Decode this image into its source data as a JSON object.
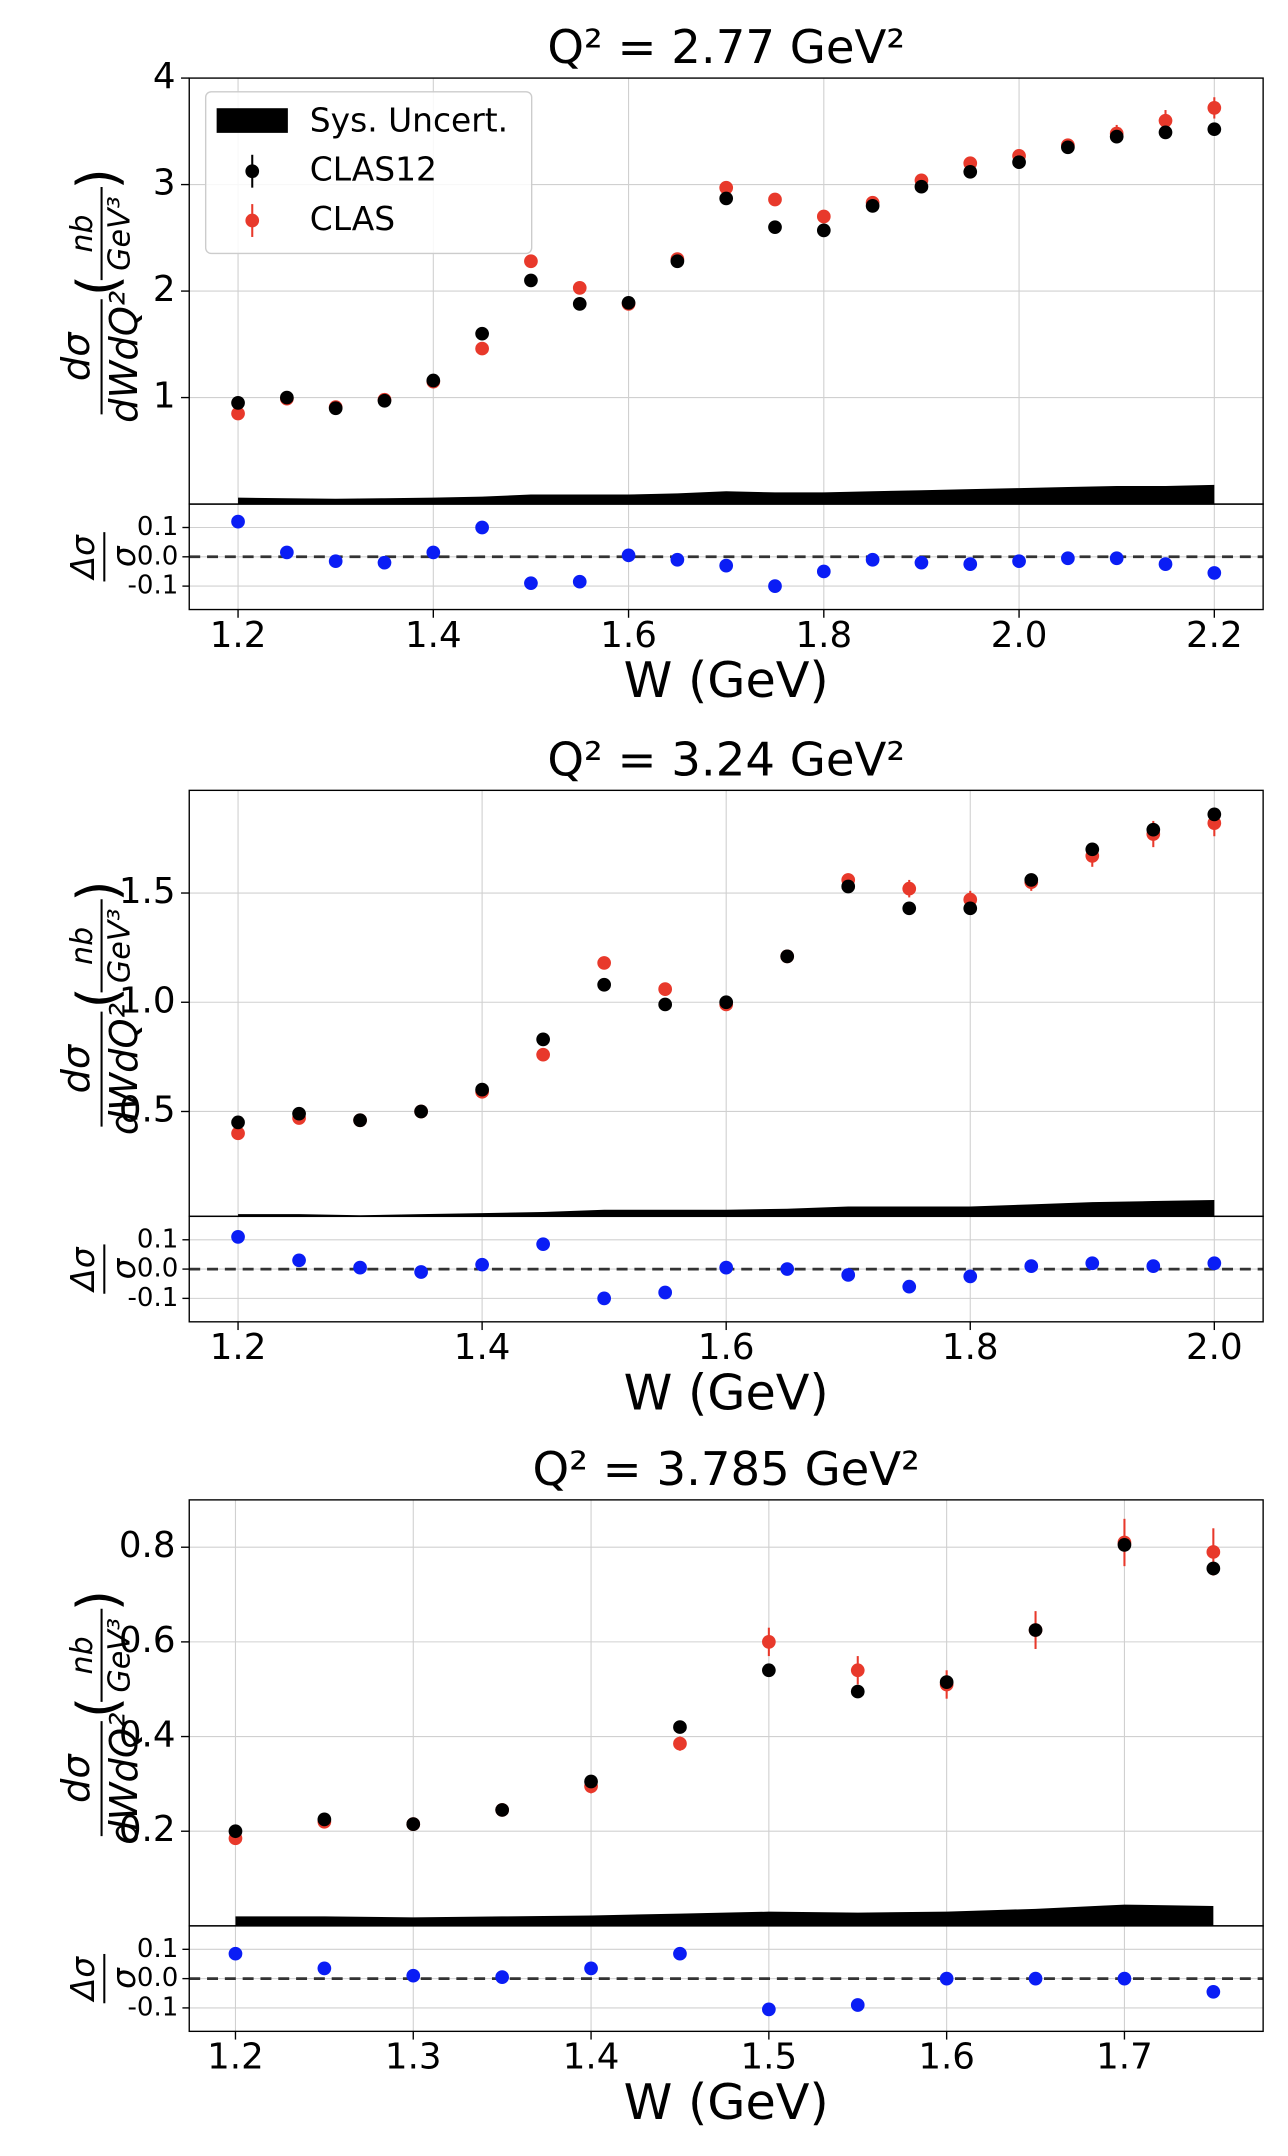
{
  "chart_data": [
    {
      "type": "errorbar",
      "title": "Q² = 2.77 GeV²",
      "xlabel": "W (GeV)",
      "ylabel": {
        "numerator": "dσ",
        "denominator": "dWdQ²",
        "unit_numerator": "nb",
        "unit_denominator": "GeV³"
      },
      "legend": "upper left",
      "grid": true,
      "x": [
        1.2,
        1.25,
        1.3,
        1.35,
        1.4,
        1.45,
        1.5,
        1.55,
        1.6,
        1.65,
        1.7,
        1.75,
        1.8,
        1.85,
        1.9,
        1.95,
        2.0,
        2.05,
        2.1,
        2.15,
        2.2
      ],
      "series": [
        {
          "name": "CLAS12",
          "color": "#000000",
          "values": [
            0.95,
            1.0,
            0.9,
            0.97,
            1.16,
            1.6,
            2.1,
            1.88,
            1.89,
            2.28,
            2.87,
            2.6,
            2.57,
            2.8,
            2.98,
            3.12,
            3.21,
            3.35,
            3.45,
            3.49,
            3.52
          ],
          "errors": [
            0.02,
            0.02,
            0.02,
            0.02,
            0.02,
            0.03,
            0.03,
            0.03,
            0.03,
            0.03,
            0.03,
            0.03,
            0.03,
            0.03,
            0.03,
            0.03,
            0.03,
            0.03,
            0.04,
            0.04,
            0.04
          ]
        },
        {
          "name": "CLAS",
          "color": "#e8392b",
          "values": [
            0.85,
            0.99,
            0.91,
            0.98,
            1.15,
            1.46,
            2.28,
            2.03,
            1.88,
            2.3,
            2.97,
            2.86,
            2.7,
            2.83,
            3.04,
            3.2,
            3.27,
            3.37,
            3.48,
            3.6,
            3.72
          ],
          "errors": [
            0.04,
            0.03,
            0.03,
            0.03,
            0.03,
            0.04,
            0.05,
            0.05,
            0.05,
            0.05,
            0.05,
            0.05,
            0.05,
            0.05,
            0.06,
            0.06,
            0.06,
            0.06,
            0.08,
            0.1,
            0.1
          ]
        }
      ],
      "band": {
        "name": "Sys. Uncert.",
        "color": "#000000",
        "values": [
          0.06,
          0.055,
          0.05,
          0.055,
          0.06,
          0.07,
          0.09,
          0.09,
          0.09,
          0.1,
          0.12,
          0.11,
          0.11,
          0.12,
          0.13,
          0.14,
          0.15,
          0.16,
          0.17,
          0.17,
          0.18
        ]
      },
      "xlim": [
        1.15,
        2.25
      ],
      "xticks": [
        1.2,
        1.4,
        1.6,
        1.8,
        {
          "value": 2.0,
          "label": "2.0"
        },
        2.2
      ],
      "ylim": [
        0,
        4.0
      ],
      "yticks": [
        1,
        2,
        3,
        4
      ],
      "ratio": {
        "ylabel": {
          "numerator": "Δσ",
          "denominator": "σ"
        },
        "color": "#0a1df5",
        "reference": 0,
        "values": [
          0.12,
          0.015,
          -0.015,
          -0.02,
          0.015,
          0.1,
          -0.09,
          -0.085,
          0.005,
          -0.01,
          -0.03,
          -0.1,
          -0.05,
          -0.01,
          -0.02,
          -0.025,
          -0.015,
          -0.005,
          -0.005,
          -0.025,
          -0.055
        ],
        "ylim": [
          -0.18,
          0.18
        ],
        "yticks": [
          0.1,
          {
            "value": 0,
            "label": "0.0"
          },
          -0.1
        ]
      }
    },
    {
      "type": "errorbar",
      "title": "Q² = 3.24 GeV²",
      "xlabel": "W (GeV)",
      "ylabel": {
        "numerator": "dσ",
        "denominator": "dWdQ²",
        "unit_numerator": "nb",
        "unit_denominator": "GeV³"
      },
      "grid": true,
      "x": [
        1.2,
        1.25,
        1.3,
        1.35,
        1.4,
        1.45,
        1.5,
        1.55,
        1.6,
        1.65,
        1.7,
        1.75,
        1.8,
        1.85,
        1.9,
        1.95,
        2.0
      ],
      "series": [
        {
          "name": "CLAS12",
          "color": "#000000",
          "values": [
            0.45,
            0.49,
            0.46,
            0.5,
            0.6,
            0.83,
            1.08,
            0.99,
            1.0,
            1.21,
            1.53,
            1.43,
            1.43,
            1.56,
            1.7,
            1.79,
            1.86
          ],
          "errors": [
            0.01,
            0.01,
            0.01,
            0.01,
            0.01,
            0.01,
            0.01,
            0.01,
            0.01,
            0.01,
            0.02,
            0.02,
            0.02,
            0.02,
            0.02,
            0.02,
            0.02
          ]
        },
        {
          "name": "CLAS",
          "color": "#e8392b",
          "values": [
            0.4,
            0.47,
            0.46,
            0.5,
            0.59,
            0.76,
            1.18,
            1.06,
            0.99,
            1.21,
            1.56,
            1.52,
            1.47,
            1.55,
            1.67,
            1.77,
            1.82
          ],
          "errors": [
            0.02,
            0.02,
            0.02,
            0.02,
            0.02,
            0.02,
            0.03,
            0.03,
            0.03,
            0.03,
            0.03,
            0.04,
            0.04,
            0.04,
            0.05,
            0.06,
            0.06
          ]
        }
      ],
      "band": {
        "name": "Sys. Uncert.",
        "color": "#000000",
        "values": [
          0.03,
          0.03,
          0.025,
          0.03,
          0.035,
          0.04,
          0.05,
          0.05,
          0.05,
          0.055,
          0.065,
          0.065,
          0.065,
          0.075,
          0.085,
          0.09,
          0.095
        ]
      },
      "xlim": [
        1.16,
        2.04
      ],
      "xticks": [
        1.2,
        1.4,
        1.6,
        1.8,
        {
          "value": 2.0,
          "label": "2.0"
        }
      ],
      "ylim": [
        0.02,
        1.97
      ],
      "yticks": [
        0.5,
        {
          "value": 1.0,
          "label": "1.0"
        },
        1.5
      ],
      "ratio": {
        "ylabel": {
          "numerator": "Δσ",
          "denominator": "σ"
        },
        "color": "#0a1df5",
        "reference": 0,
        "values": [
          0.11,
          0.03,
          0.005,
          -0.01,
          0.015,
          0.085,
          -0.1,
          -0.08,
          0.005,
          0,
          -0.02,
          -0.06,
          -0.025,
          0.01,
          0.02,
          0.01,
          0.02
        ],
        "ylim": [
          -0.18,
          0.18
        ],
        "yticks": [
          0.1,
          {
            "value": 0,
            "label": "0.0"
          },
          -0.1
        ]
      }
    },
    {
      "type": "errorbar",
      "title": "Q² = 3.785 GeV²",
      "xlabel": "W (GeV)",
      "ylabel": {
        "numerator": "dσ",
        "denominator": "dWdQ²",
        "unit_numerator": "nb",
        "unit_denominator": "GeV³"
      },
      "grid": true,
      "x": [
        1.2,
        1.25,
        1.3,
        1.35,
        1.4,
        1.45,
        1.5,
        1.55,
        1.6,
        1.65,
        1.7,
        1.75
      ],
      "series": [
        {
          "name": "CLAS12",
          "color": "#000000",
          "values": [
            0.2,
            0.225,
            0.215,
            0.245,
            0.305,
            0.42,
            0.54,
            0.495,
            0.515,
            0.625,
            0.805,
            0.755
          ],
          "errors": [
            0.005,
            0.005,
            0.005,
            0.005,
            0.005,
            0.006,
            0.007,
            0.007,
            0.007,
            0.008,
            0.01,
            0.01
          ]
        },
        {
          "name": "CLAS",
          "color": "#e8392b",
          "values": [
            0.185,
            0.22,
            0.215,
            0.245,
            0.295,
            0.385,
            0.6,
            0.54,
            0.51,
            0.625,
            0.81,
            0.79
          ],
          "errors": [
            0.01,
            0.01,
            0.01,
            0.01,
            0.015,
            0.015,
            0.03,
            0.03,
            0.03,
            0.04,
            0.05,
            0.05
          ]
        }
      ],
      "band": {
        "name": "Sys. Uncert.",
        "color": "#000000",
        "values": [
          0.02,
          0.02,
          0.018,
          0.02,
          0.022,
          0.026,
          0.03,
          0.028,
          0.03,
          0.036,
          0.045,
          0.042
        ]
      },
      "xlim": [
        1.174,
        1.778
      ],
      "xticks": [
        1.2,
        1.3,
        1.4,
        1.5,
        1.6,
        1.7
      ],
      "ylim": [
        0,
        0.9
      ],
      "yticks": [
        0.2,
        0.4,
        0.6,
        0.8
      ],
      "ratio": {
        "ylabel": {
          "numerator": "Δσ",
          "denominator": "σ"
        },
        "color": "#0a1df5",
        "reference": 0,
        "values": [
          0.085,
          0.035,
          0.01,
          0.005,
          0.035,
          0.085,
          -0.105,
          -0.09,
          0,
          0,
          0,
          -0.045
        ],
        "ylim": [
          -0.18,
          0.18
        ],
        "yticks": [
          0.1,
          {
            "value": 0,
            "label": "0.0"
          },
          -0.1
        ]
      }
    }
  ]
}
